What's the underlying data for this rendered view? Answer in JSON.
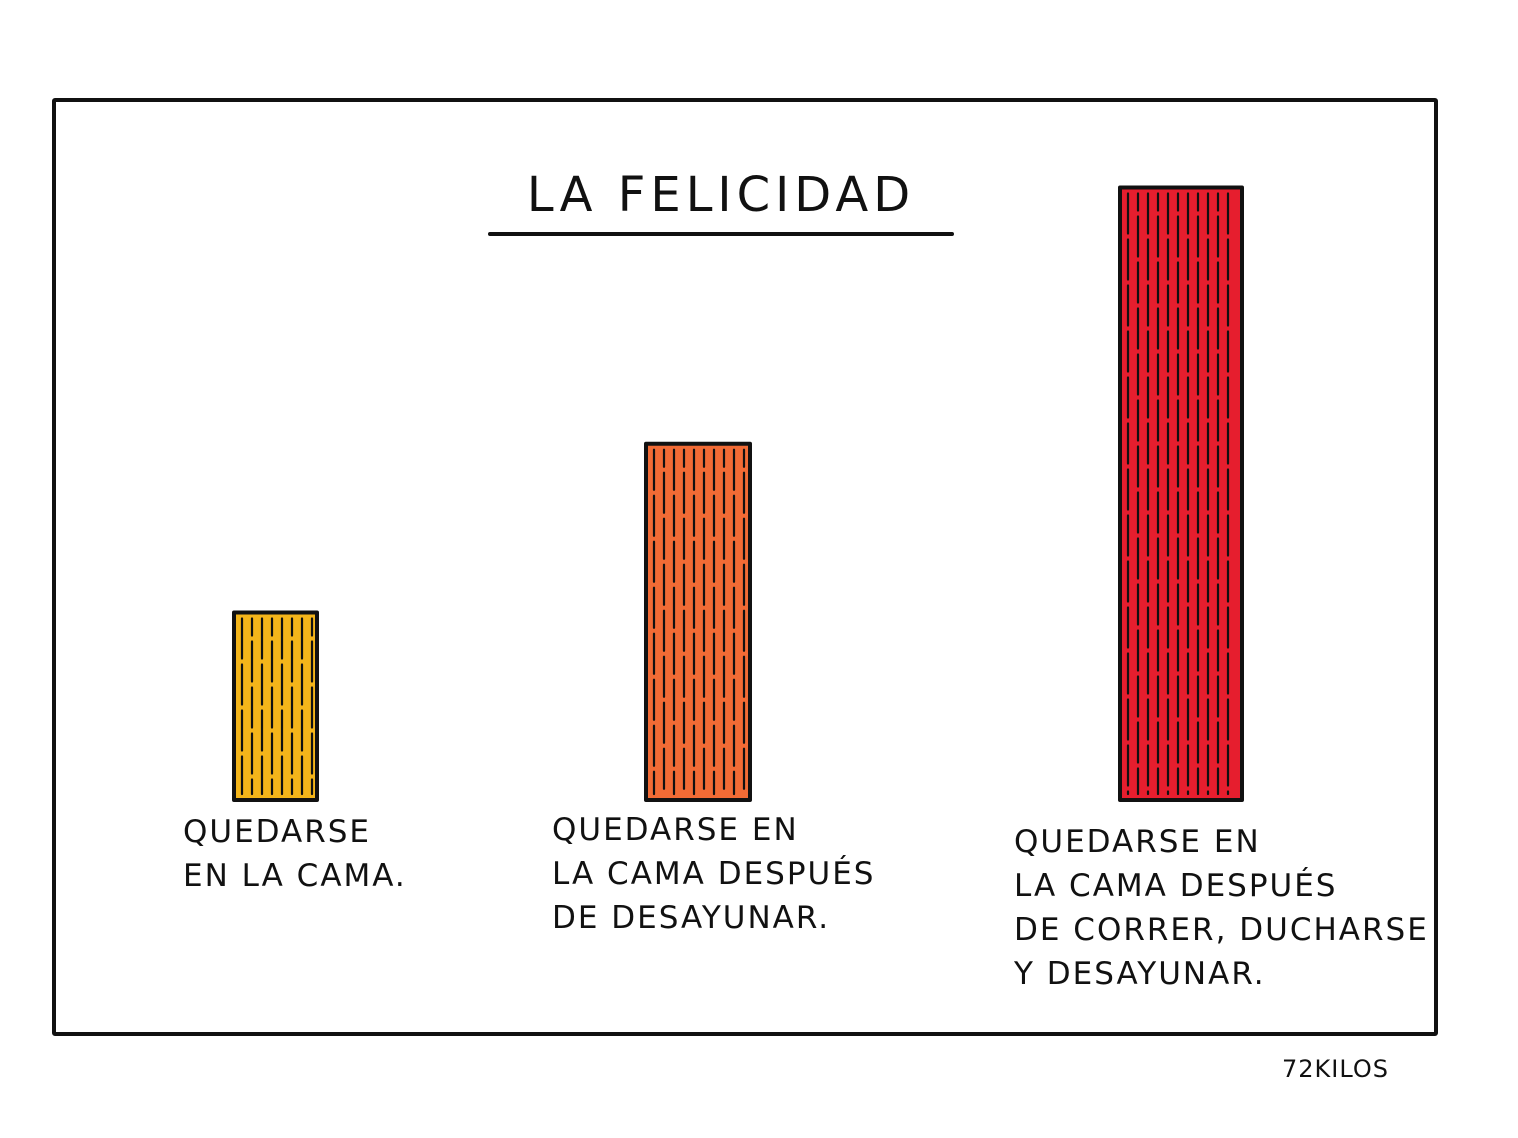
{
  "chart_data": {
    "type": "bar",
    "title": "LA FELICIDAD",
    "xlabel": "",
    "ylabel": "",
    "grid": false,
    "legend": "none",
    "ylim": [
      0,
      10
    ],
    "categories": [
      "QUEDARSE EN LA CAMA.",
      "QUEDARSE EN LA CAMA DESPUÉS DE DESAYUNAR.",
      "QUEDARSE EN LA CAMA DESPUÉS DE CORRER, DUCHARSE Y DESAYUNAR."
    ],
    "category_lines": [
      "QUEDARSE\nEN LA CAMA.",
      "QUEDARSE EN\nLA CAMA DESPUÉS\nDE DESAYUNAR.",
      "QUEDARSE EN\nLA CAMA DESPUÉS\nDE CORRER, DUCHARSE\nY DESAYUNAR."
    ],
    "values": [
      3.0,
      5.7,
      9.8
    ],
    "colors": [
      "#f4b51a",
      "#f26b35",
      "#e61e2e"
    ]
  },
  "signature": "72KILOS",
  "colors": {
    "ink": "#111111",
    "background": "#ffffff"
  }
}
